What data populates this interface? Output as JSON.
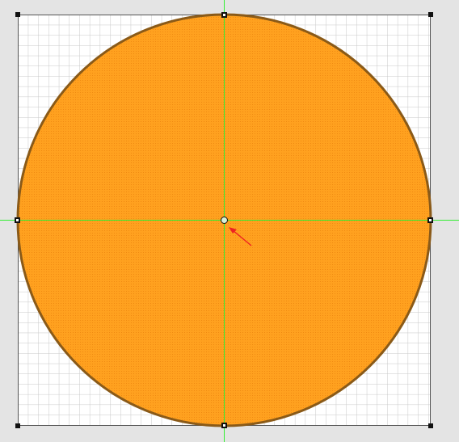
{
  "canvas": {
    "background": "#e4e4e4",
    "page_color": "#ffffff",
    "grid_color": "#c8c8c8",
    "grid_major_color": "#b4b4b4"
  },
  "shape": {
    "type": "circle",
    "fill_color": "#ffa11f",
    "pattern_color": "#f08a12",
    "stroke_color": "#8a5a18"
  },
  "guides": {
    "color": "#33ee33"
  },
  "handles": {
    "color": "#111111",
    "center_handle_fill": "#d8f0d8"
  },
  "pointer": {
    "icon": "red-arrow-pointer-icon",
    "color": "#ee2222"
  }
}
